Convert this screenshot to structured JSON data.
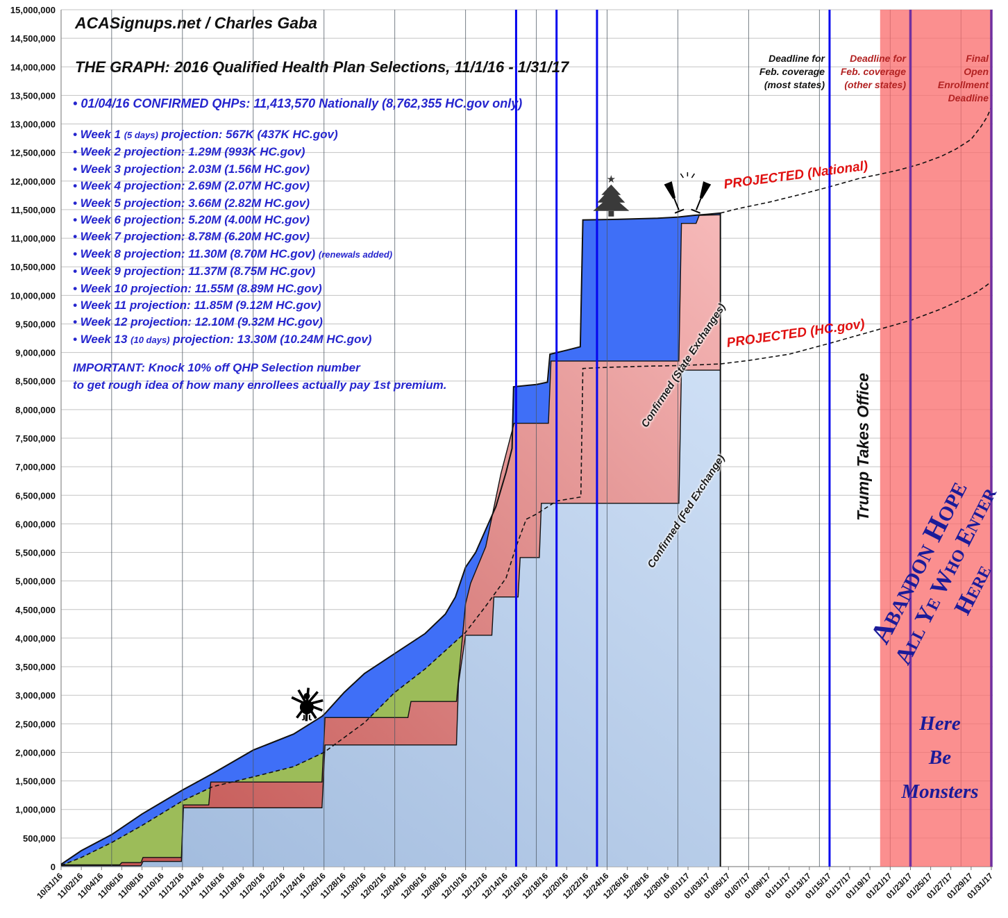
{
  "header": {
    "brand": "ACASignups.net / Charles Gaba",
    "title": "THE GRAPH: 2016 Qualified Health Plan Selections, 11/1/16 - 1/31/17",
    "bullet": "•",
    "confirmed_line": "01/04/16 CONFIRMED QHPs: 11,413,570 Nationally (8,762,355 HC.gov only)",
    "weeks": [
      {
        "label": "Week 1",
        "days_note": "(5 days)",
        "text": "projection: 567K (437K HC.gov)",
        "extra": ""
      },
      {
        "label": "Week 2",
        "days_note": "",
        "text": "projection: 1.29M (993K HC.gov)",
        "extra": ""
      },
      {
        "label": "Week 3",
        "days_note": "",
        "text": "projection: 2.03M (1.56M HC.gov)",
        "extra": ""
      },
      {
        "label": "Week 4",
        "days_note": "",
        "text": "projection: 2.69M (2.07M HC.gov)",
        "extra": ""
      },
      {
        "label": "Week 5",
        "days_note": "",
        "text": "projection: 3.66M (2.82M HC.gov)",
        "extra": ""
      },
      {
        "label": "Week 6",
        "days_note": "",
        "text": "projection: 5.20M (4.00M HC.gov)",
        "extra": ""
      },
      {
        "label": "Week 7",
        "days_note": "",
        "text": "projection: 8.78M (6.20M HC.gov)",
        "extra": ""
      },
      {
        "label": "Week 8",
        "days_note": "",
        "text": "projection: 11.30M (8.70M HC.gov)",
        "extra": "(renewals added)"
      },
      {
        "label": "Week 9",
        "days_note": "",
        "text": "projection: 11.37M (8.75M HC.gov)",
        "extra": ""
      },
      {
        "label": "Week 10",
        "days_note": "",
        "text": "projection: 11.55M (8.89M HC.gov)",
        "extra": ""
      },
      {
        "label": "Week 11",
        "days_note": "",
        "text": "projection: 11.85M (9.12M HC.gov)",
        "extra": ""
      },
      {
        "label": "Week 12",
        "days_note": "",
        "text": "projection: 12.10M (9.32M HC.gov)",
        "extra": ""
      },
      {
        "label": "Week 13",
        "days_note": "(10 days)",
        "text": "projection: 13.30M (10.24M HC.gov)",
        "extra": ""
      }
    ],
    "important_1": "IMPORTANT: Knock 10% off QHP Selection number",
    "important_2": "to get rough idea of how many enrollees actually pay 1st premium."
  },
  "annotations": {
    "deadline_most": [
      "Deadline for",
      "Feb. coverage",
      "(most states)"
    ],
    "deadline_other": [
      "Deadline for",
      "Feb. coverage",
      "(other states)"
    ],
    "deadline_final": [
      "Final",
      "Open",
      "Enrollment",
      "Deadline"
    ],
    "projected_national": "PROJECTED (National)",
    "projected_hcgov": "PROJECTED (HC.gov)",
    "label_state": "Confirmed (State Exchanges)",
    "label_fed": "Confirmed (Fed Exchange)",
    "trump": "Trump Takes Office",
    "abandon_1": "Abandon Hope",
    "abandon_2": "All Ye Who Enter Here",
    "monsters": [
      "Here",
      "Be",
      "Monsters"
    ]
  },
  "chart_data": {
    "type": "area",
    "title": "2016 Qualified Health Plan Selections, 11/1/16 - 1/31/17",
    "x_labels": [
      "10/31/16",
      "11/02/16",
      "11/04/16",
      "11/06/16",
      "11/08/16",
      "11/10/16",
      "11/12/16",
      "11/14/16",
      "11/16/16",
      "11/18/16",
      "11/20/16",
      "11/22/16",
      "11/24/16",
      "11/26/16",
      "11/28/16",
      "11/30/16",
      "12/02/16",
      "12/04/16",
      "12/06/16",
      "12/08/16",
      "12/10/16",
      "12/12/16",
      "12/14/16",
      "12/16/16",
      "12/18/16",
      "12/20/16",
      "12/22/16",
      "12/24/16",
      "12/26/16",
      "12/28/16",
      "12/30/16",
      "01/01/17",
      "01/03/17",
      "01/05/17",
      "01/07/17",
      "01/09/17",
      "01/11/17",
      "01/13/17",
      "01/15/17",
      "01/17/17",
      "01/19/17",
      "01/21/17",
      "01/23/17",
      "01/25/17",
      "01/27/17",
      "01/29/17",
      "01/31/17"
    ],
    "x_label_step_days": 2,
    "y_min": 0,
    "y_max": 15000000,
    "y_step": 500000,
    "grid": "weekly vertical (Saturdays) + 500K horizontal",
    "units": "millions of QHP selections",
    "series": [
      {
        "name": "National confirmed (top line)",
        "style": "solid-black-over-blue",
        "points": [
          [
            0,
            0.04
          ],
          [
            2,
            0.28
          ],
          [
            5,
            0.56
          ],
          [
            8,
            0.92
          ],
          [
            10,
            1.13
          ],
          [
            12,
            1.34
          ],
          [
            15,
            1.63
          ],
          [
            19,
            2.04
          ],
          [
            23,
            2.32
          ],
          [
            25.8,
            2.63
          ],
          [
            26.1,
            2.68
          ],
          [
            28,
            3.05
          ],
          [
            30,
            3.38
          ],
          [
            33,
            3.73
          ],
          [
            36,
            4.08
          ],
          [
            38,
            4.42
          ],
          [
            39,
            4.72
          ],
          [
            40,
            5.24
          ],
          [
            41,
            5.5
          ],
          [
            42,
            5.9
          ],
          [
            43,
            6.3
          ],
          [
            44,
            6.9
          ],
          [
            44.6,
            7.32
          ],
          [
            44.75,
            8.4
          ],
          [
            47,
            8.44
          ],
          [
            48.1,
            8.48
          ],
          [
            48.35,
            8.97
          ],
          [
            50,
            9.04
          ],
          [
            51.35,
            9.1
          ],
          [
            51.6,
            11.32
          ],
          [
            55,
            11.33
          ],
          [
            59,
            11.35
          ],
          [
            61,
            11.37
          ],
          [
            62.5,
            11.4
          ],
          [
            64,
            11.42
          ],
          [
            65.2,
            11.44
          ]
        ]
      },
      {
        "name": "National projected (dashed)",
        "style": "dashed-black",
        "points": [
          [
            65.2,
            11.44
          ],
          [
            67,
            11.52
          ],
          [
            70,
            11.63
          ],
          [
            73,
            11.76
          ],
          [
            76,
            11.9
          ],
          [
            79,
            12.05
          ],
          [
            81,
            12.12
          ],
          [
            83,
            12.2
          ],
          [
            85,
            12.3
          ],
          [
            87,
            12.43
          ],
          [
            88.5,
            12.56
          ],
          [
            90,
            12.73
          ],
          [
            91,
            12.96
          ],
          [
            91.6,
            13.13
          ],
          [
            92,
            13.3
          ]
        ]
      },
      {
        "name": "HC.gov projection (dashed, green area top)",
        "style": "dashed-black",
        "points": [
          [
            0,
            0.02
          ],
          [
            2,
            0.16
          ],
          [
            5,
            0.42
          ],
          [
            8,
            0.72
          ],
          [
            12,
            1.15
          ],
          [
            15,
            1.4
          ],
          [
            19,
            1.57
          ],
          [
            23,
            1.75
          ],
          [
            26,
            2.0
          ],
          [
            28,
            2.26
          ],
          [
            30,
            2.52
          ],
          [
            33,
            3.05
          ],
          [
            36,
            3.46
          ],
          [
            38,
            3.78
          ],
          [
            40,
            4.1
          ],
          [
            42,
            4.56
          ],
          [
            44,
            5.05
          ],
          [
            45,
            5.6
          ],
          [
            46,
            6.08
          ],
          [
            47,
            6.17
          ],
          [
            49,
            6.4
          ],
          [
            51.4,
            6.47
          ],
          [
            51.6,
            8.72
          ],
          [
            54,
            8.74
          ],
          [
            58,
            8.76
          ],
          [
            61,
            8.77
          ],
          [
            65.2,
            8.8
          ]
        ]
      },
      {
        "name": "HC.gov projected (dashed)",
        "style": "dashed-black",
        "points": [
          [
            65.2,
            8.8
          ],
          [
            68,
            8.86
          ],
          [
            72,
            8.97
          ],
          [
            76,
            9.16
          ],
          [
            80,
            9.36
          ],
          [
            84,
            9.56
          ],
          [
            87,
            9.76
          ],
          [
            89,
            9.92
          ],
          [
            90.5,
            10.05
          ],
          [
            91.5,
            10.17
          ],
          [
            92,
            10.24
          ]
        ]
      },
      {
        "name": "Confirmed (State Exchanges) top",
        "style": "red-pink-gradient-area",
        "points": [
          [
            0,
            0.03
          ],
          [
            5.8,
            0.03
          ],
          [
            6,
            0.07
          ],
          [
            7.9,
            0.07
          ],
          [
            8.1,
            0.16
          ],
          [
            11.9,
            0.16
          ],
          [
            12.1,
            1.08
          ],
          [
            14.6,
            1.08
          ],
          [
            14.8,
            1.48
          ],
          [
            25.8,
            1.48
          ],
          [
            26.1,
            2.61
          ],
          [
            34.3,
            2.61
          ],
          [
            34.6,
            2.89
          ],
          [
            39.1,
            2.89
          ],
          [
            40,
            4.6
          ],
          [
            40.5,
            4.96
          ],
          [
            42,
            5.6
          ],
          [
            43.5,
            6.88
          ],
          [
            44.8,
            7.76
          ],
          [
            48.2,
            7.76
          ],
          [
            48.45,
            8.85
          ],
          [
            61.1,
            8.85
          ],
          [
            61.35,
            11.26
          ],
          [
            62.8,
            11.26
          ],
          [
            63.1,
            11.4
          ],
          [
            65.2,
            11.41
          ]
        ]
      },
      {
        "name": "Confirmed (Fed Exchange) top",
        "style": "light-blue-gradient-area",
        "points": [
          [
            0,
            0.015
          ],
          [
            7.9,
            0.015
          ],
          [
            8.1,
            0.09
          ],
          [
            11.9,
            0.09
          ],
          [
            12.1,
            1.03
          ],
          [
            25.8,
            1.03
          ],
          [
            26.1,
            2.13
          ],
          [
            39.1,
            2.13
          ],
          [
            39.3,
            3.2
          ],
          [
            40,
            4.05
          ],
          [
            42.6,
            4.05
          ],
          [
            42.8,
            4.72
          ],
          [
            45.2,
            4.72
          ],
          [
            45.4,
            5.41
          ],
          [
            47.3,
            5.41
          ],
          [
            47.5,
            6.36
          ],
          [
            61.1,
            6.36
          ],
          [
            61.35,
            8.69
          ],
          [
            65.2,
            8.69
          ]
        ]
      }
    ],
    "confirmed_end_day": 65.2,
    "total_days": 92,
    "weekly_gridline_days": [
      5,
      12,
      19,
      26,
      33,
      40,
      47,
      54,
      61,
      68,
      75,
      82,
      89
    ],
    "deadline_lines": {
      "blue_days": [
        45,
        49,
        53,
        76
      ],
      "purple_days": [
        84,
        92
      ]
    },
    "danger_zone": {
      "start_day": 81,
      "end_day": 92
    },
    "icons": [
      {
        "name": "thanksgiving-turkey-icon",
        "day": 24.3,
        "value": 2.62
      },
      {
        "name": "christmas-tree-icon",
        "day": 54.4,
        "value": 11.38
      },
      {
        "name": "new-years-champagne-icon",
        "day": 61.2,
        "value": 11.45
      }
    ],
    "legend_position": "labels drawn on areas",
    "colors": {
      "national_blue": "#3F6FF7",
      "hcgov_green": "#9CBC59",
      "state_red_dark": "#C0504D",
      "state_pink_light": "#F6B9B9",
      "fed_blue_dark": "#9FB9DC",
      "fed_blue_light": "#CEDFF5",
      "danger_zone": "#F96A6A",
      "deadline_blue": "#0505EE",
      "deadline_purple": "#7030A0",
      "grid_h": "#C3C3C3",
      "grid_v": "#4A5560",
      "axis": "#8a8a8a"
    }
  }
}
